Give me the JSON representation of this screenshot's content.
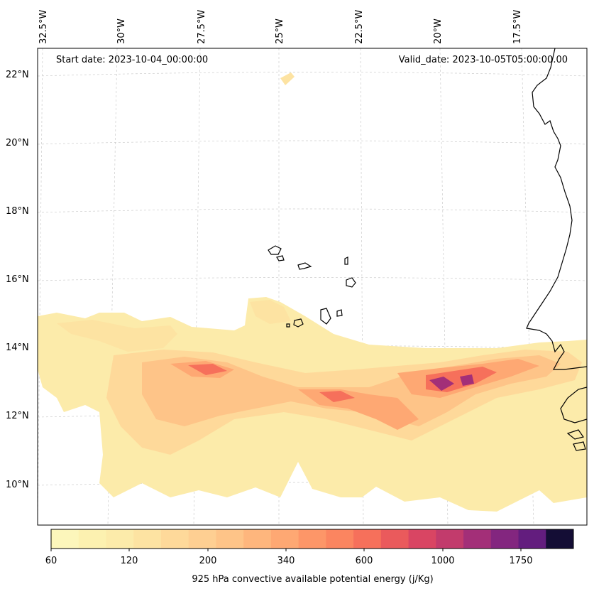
{
  "map": {
    "start_date_text": "Start date: 2023-10-04_00:00:00",
    "valid_date_text": "Valid_date: 2023-10-05T05:00:00.00",
    "longitude_labels": [
      "32.5°W",
      "30°W",
      "27.5°W",
      "25°W",
      "22.5°W",
      "20°W",
      "17.5°W"
    ],
    "latitude_labels": [
      "22°N",
      "20°N",
      "18°N",
      "16°N",
      "14°N",
      "12°N",
      "10°N"
    ]
  },
  "colorbar": {
    "label": "925 hPa convective available potential energy (j/Kg)",
    "tick_labels": [
      "60",
      "120",
      "200",
      "340",
      "600",
      "1000",
      "1750"
    ],
    "colors": [
      "#fcf6bb",
      "#fcf1b0",
      "#fcebaa",
      "#fde3a2",
      "#fed99a",
      "#fecf92",
      "#fec488",
      "#feb67d",
      "#fea873",
      "#fd9668",
      "#fb8560",
      "#f6705b",
      "#ea5a5c",
      "#d94563",
      "#c23b6c",
      "#a32f78",
      "#83267f",
      "#631d7e",
      "#140d35"
    ]
  }
}
